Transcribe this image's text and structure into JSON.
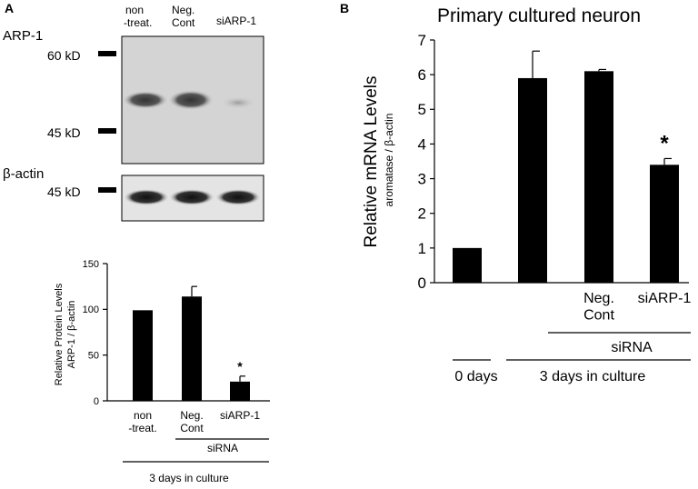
{
  "panel_a": {
    "letter": "A",
    "blot": {
      "lanes": [
        {
          "line1": "non",
          "line2": "-treat."
        },
        {
          "line1": "Neg.",
          "line2": "Cont"
        },
        {
          "line1": "siARP-1",
          "line2": ""
        }
      ],
      "protein_label": "ARP-1",
      "marker_top": "60 kD",
      "marker_bottom": "45 kD",
      "actin_label": "β-actin",
      "actin_marker": "45 kD"
    }
  },
  "panel_b": {
    "letter": "B"
  },
  "chart_data": [
    {
      "type": "bar",
      "categories": [
        "non -treat.",
        "Neg. Cont",
        "siARP-1"
      ],
      "values": [
        99,
        114,
        21
      ],
      "errors": [
        0,
        11,
        6
      ],
      "significance": [
        "",
        "",
        "*"
      ],
      "title": "",
      "ylabel": "Relative Protein Levels",
      "ylabel2": "ARP-1 / β-actin",
      "ylim": [
        0,
        150
      ],
      "yticks": [
        0,
        50,
        100,
        150
      ],
      "category_labels": [
        [
          "non",
          "-treat."
        ],
        [
          "Neg.",
          "Cont"
        ],
        [
          "siARP-1",
          ""
        ]
      ],
      "group_label": "siRNA",
      "bottom_label": "3 days in culture"
    },
    {
      "type": "bar",
      "categories": [
        "0 days",
        "3 days",
        "Neg. Cont",
        "siARP-1"
      ],
      "values": [
        1.0,
        5.9,
        6.1,
        3.4
      ],
      "errors": [
        0,
        0.78,
        0.05,
        0.18
      ],
      "significance": [
        "",
        "",
        "",
        "*"
      ],
      "title": "Primary cultured neuron",
      "ylabel": "Relative mRNA Levels",
      "ylabel2": "aromatase / β-actin",
      "ylim": [
        0,
        7
      ],
      "yticks": [
        0,
        1,
        2,
        3,
        4,
        5,
        6,
        7
      ],
      "category_labels": [
        [
          "",
          ""
        ],
        [
          "",
          ""
        ],
        [
          "Neg.",
          "Cont"
        ],
        [
          "siARP-1",
          ""
        ]
      ],
      "group_label": "siRNA",
      "bottom_label_left": "0 days",
      "bottom_label_right": "3 days in culture"
    }
  ]
}
